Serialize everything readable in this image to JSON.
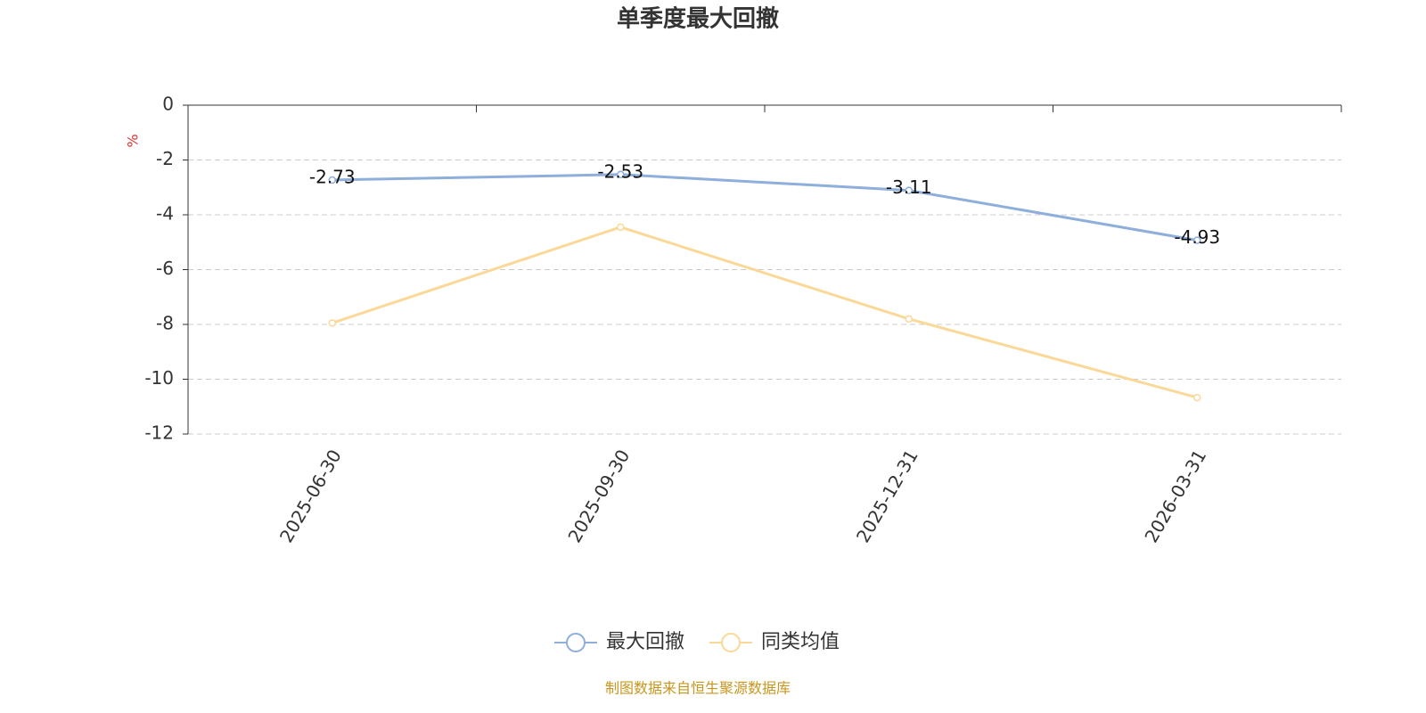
{
  "chart_data": {
    "type": "line",
    "title": "单季度最大回撤",
    "y_label": "%",
    "categories": [
      "2025-06-30",
      "2025-09-30",
      "2025-12-31",
      "2026-03-31"
    ],
    "series": [
      {
        "name": "最大回撤",
        "color": "#8eaedb",
        "values": [
          -2.73,
          -2.53,
          -3.11,
          -4.93
        ]
      },
      {
        "name": "同类均值",
        "color": "#fad897",
        "values": [
          -7.95,
          -4.45,
          -7.8,
          -10.67
        ]
      }
    ],
    "ylim": [
      -12,
      0
    ],
    "yticks": [
      0,
      -2,
      -4,
      -6,
      -8,
      -10,
      -12
    ],
    "grid": true,
    "data_labels_series": [
      0
    ],
    "legend": "bottom",
    "source": "制图数据来自恒生聚源数据库"
  }
}
